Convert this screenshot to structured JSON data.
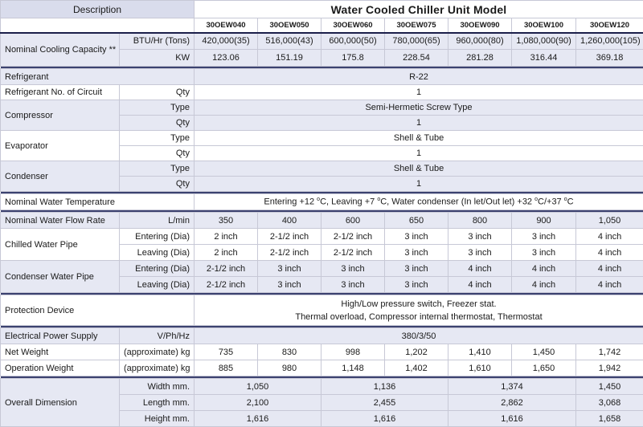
{
  "header": {
    "description_label": "Description",
    "title": "Water Cooled Chiller Unit Model",
    "models": [
      "30OEW040",
      "30OEW050",
      "30OEW060",
      "30OEW075",
      "30OEW090",
      "30OEW100",
      "30OEW120"
    ]
  },
  "cooling": {
    "label": "Nominal Cooling Capacity **",
    "btu_unit": "BTU/Hr (Tons)",
    "btu_values": [
      "420,000(35)",
      "516,000(43)",
      "600,000(50)",
      "780,000(65)",
      "960,000(80)",
      "1,080,000(90)",
      "1,260,000(105)"
    ],
    "kw_unit": "KW",
    "kw_values": [
      "123.06",
      "151.19",
      "175.8",
      "228.54",
      "281.28",
      "316.44",
      "369.18"
    ]
  },
  "refrigerant": {
    "label": "Refrigerant",
    "value": "R-22"
  },
  "circuit": {
    "label": "Refrigerant No. of Circuit",
    "unit": "Qty",
    "value": "1"
  },
  "compressor": {
    "label": "Compressor",
    "type_unit": "Type",
    "type_value": "Semi-Hermetic Screw Type",
    "qty_unit": "Qty",
    "qty_value": "1"
  },
  "evaporator": {
    "label": "Evaporator",
    "type_unit": "Type",
    "type_value": "Shell & Tube",
    "qty_unit": "Qty",
    "qty_value": "1"
  },
  "condenser": {
    "label": "Condenser",
    "type_unit": "Type",
    "type_value": "Shell & Tube",
    "qty_unit": "Qty",
    "qty_value": "1"
  },
  "water_temp": {
    "label": "Nominal Water Temperature",
    "p1": "Entering +12 ",
    "deg1": "o",
    "p2": "C, Leaving +7 ",
    "deg2": "o",
    "p3": "C, Water condenser (In let/Out let) +32 ",
    "deg3": "o",
    "p4": "C/+37 ",
    "deg4": "o",
    "p5": "C"
  },
  "flow": {
    "label": "Nominal Water Flow Rate",
    "unit": "L/min",
    "values": [
      "350",
      "400",
      "600",
      "650",
      "800",
      "900",
      "1,050"
    ]
  },
  "chilled_pipe": {
    "label": "Chilled Water Pipe",
    "entering_unit": "Entering (Dia)",
    "leaving_unit": "Leaving (Dia)",
    "entering": [
      "2 inch",
      "2-1/2 inch",
      "2-1/2 inch",
      "3 inch",
      "3 inch",
      "3 inch",
      "4 inch"
    ],
    "leaving": [
      "2 inch",
      "2-1/2 inch",
      "2-1/2 inch",
      "3 inch",
      "3 inch",
      "3 inch",
      "4 inch"
    ]
  },
  "condenser_pipe": {
    "label": "Condenser Water Pipe",
    "entering_unit": "Entering (Dia)",
    "leaving_unit": "Leaving (Dia)",
    "entering": [
      "2-1/2 inch",
      "3 inch",
      "3 inch",
      "3 inch",
      "4 inch",
      "4 inch",
      "4 inch"
    ],
    "leaving": [
      "2-1/2 inch",
      "3 inch",
      "3 inch",
      "3 inch",
      "4 inch",
      "4 inch",
      "4 inch"
    ]
  },
  "protection": {
    "label": "Protection Device",
    "line1": "High/Low pressure switch, Freezer stat.",
    "line2": "Thermal overload, Compressor internal thermostat, Thermostat"
  },
  "power": {
    "label": "Electrical Power Supply",
    "unit": "V/Ph/Hz",
    "value": "380/3/50"
  },
  "weights": {
    "net_label": "Net Weight",
    "net_unit": "(approximate) kg",
    "net": [
      "735",
      "830",
      "998",
      "1,202",
      "1,410",
      "1,450",
      "1,742"
    ],
    "op_label": "Operation Weight",
    "op_unit": "(approximate) kg",
    "op": [
      "885",
      "980",
      "1,148",
      "1,402",
      "1,610",
      "1,650",
      "1,942"
    ]
  },
  "dimension": {
    "label": "Overall Dimension",
    "width_unit": "Width mm.",
    "length_unit": "Length mm.",
    "height_unit": "Height mm.",
    "width": [
      "1,050",
      "1,136",
      "1,374",
      "1,450"
    ],
    "length": [
      "2,100",
      "2,455",
      "2,862",
      "3,068"
    ],
    "height": [
      "1,616",
      "1,616",
      "1,616",
      "1,658"
    ]
  }
}
